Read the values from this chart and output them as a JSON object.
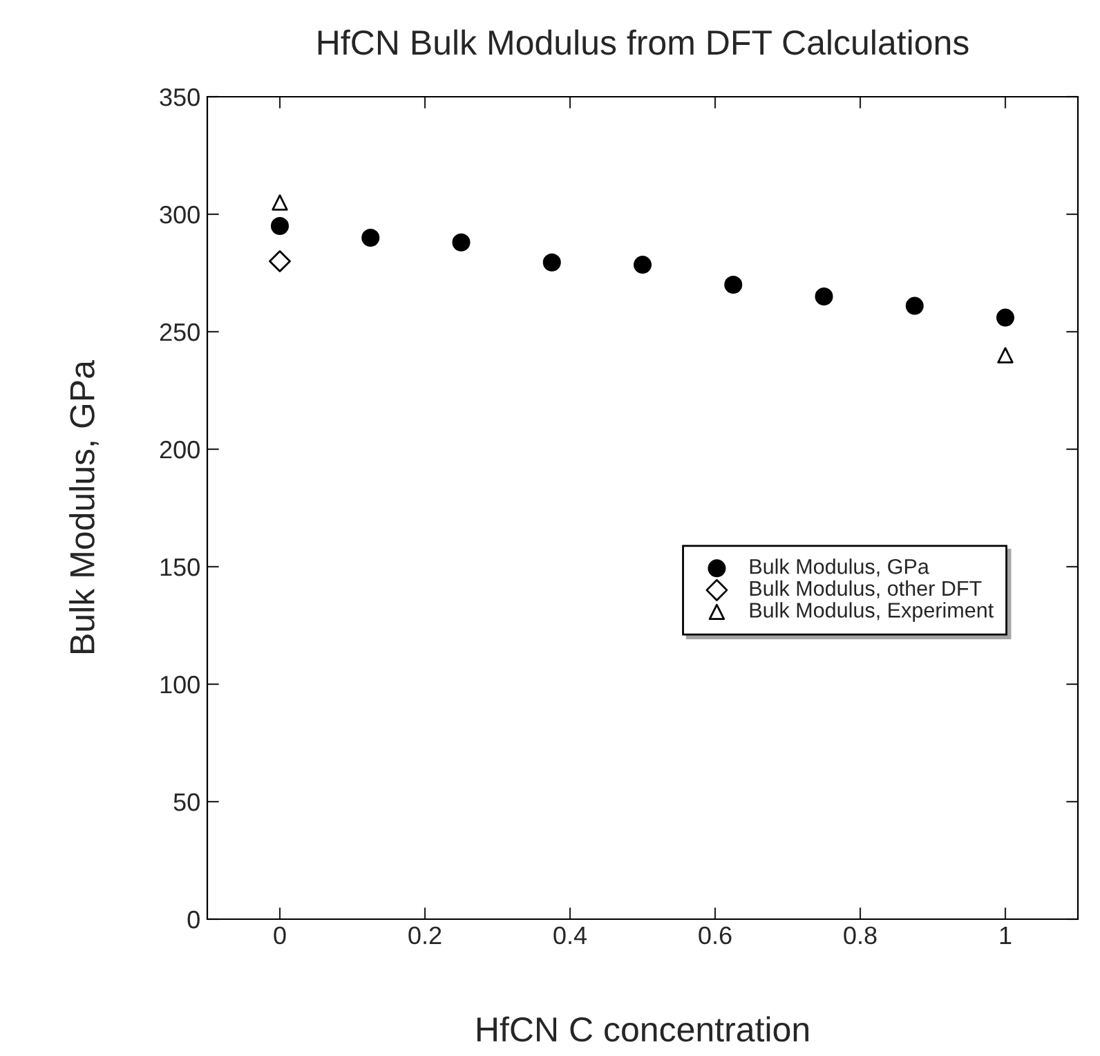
{
  "chart_data": {
    "type": "scatter",
    "title": "HfCN Bulk Modulus from DFT Calculations",
    "xlabel": "HfCN C concentration",
    "ylabel": "Bulk Modulus, GPa",
    "series": [
      {
        "name": "Bulk Modulus, GPa",
        "color": "#000000",
        "marker": "circle",
        "x": [
          0,
          0.125,
          0.25,
          0.375,
          0.5,
          0.625,
          0.75,
          0.875,
          1
        ],
        "values": [
          295,
          290,
          288,
          279.5,
          278.5,
          270,
          265,
          261,
          256
        ]
      },
      {
        "name": "Bulk Modulus, other DFT",
        "color": "#000000",
        "marker": "diamond",
        "x": [
          0
        ],
        "values": [
          280
        ]
      },
      {
        "name": "Bulk Modulus, Experiment",
        "color": "#000000",
        "marker": "triangle",
        "x": [
          0,
          1
        ],
        "values": [
          305,
          240
        ]
      }
    ],
    "xlim": [
      -0.1,
      1.1
    ],
    "xticks": [
      0,
      0.2,
      0.4,
      0.6,
      0.8,
      1
    ],
    "ylim": [
      0,
      350
    ],
    "yticks": [
      0,
      50,
      100,
      150,
      200,
      250,
      300,
      350
    ],
    "grid": false,
    "legend": "right"
  }
}
